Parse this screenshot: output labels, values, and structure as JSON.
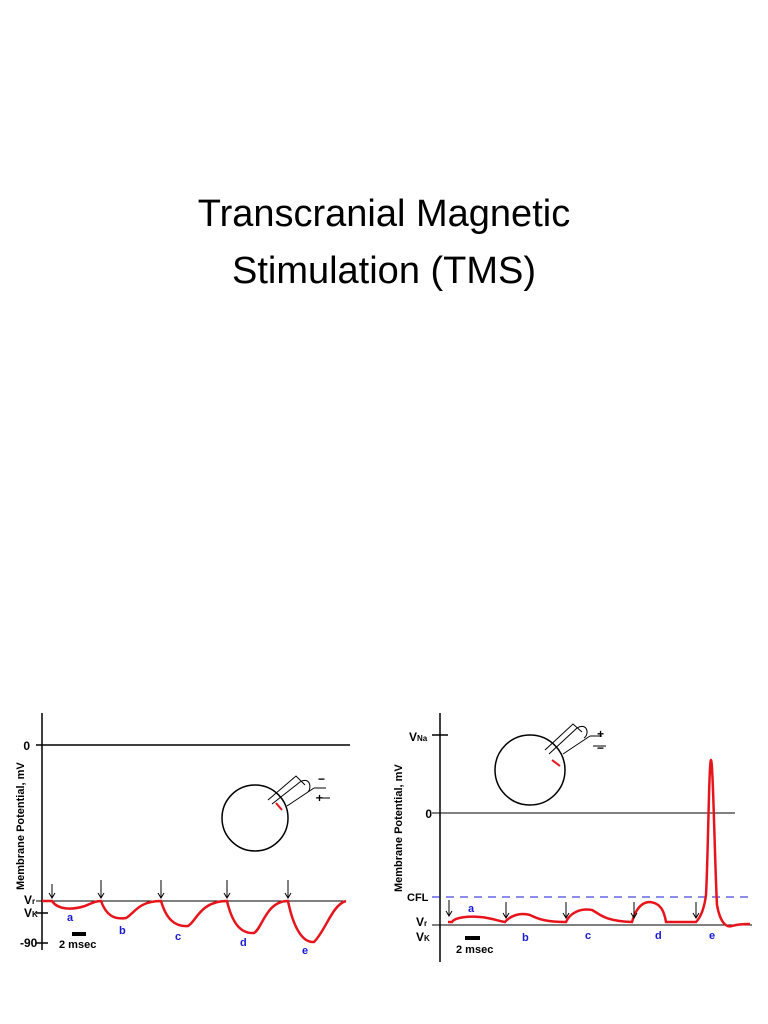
{
  "title": [
    "Transcranial Magnetic",
    "Stimulation (TMS)"
  ],
  "left_figure": {
    "axis_label": "Membrane Potential, mV",
    "zero": "0",
    "vr": {
      "main": "V",
      "sub": "r"
    },
    "vk": {
      "main": "V",
      "sub": "K"
    },
    "minus90": "-90",
    "scale": "2 msec",
    "letters": [
      "a",
      "b",
      "c",
      "d",
      "e"
    ],
    "minus_sign": "−",
    "plus_sign": "+"
  },
  "right_figure": {
    "axis_label": "Membrane Potential, mV",
    "vna": {
      "main": "V",
      "sub": "Na"
    },
    "zero": "0",
    "cfl": "CFL",
    "vr": {
      "main": "V",
      "sub": "r"
    },
    "vk": {
      "main": "V",
      "sub": "K"
    },
    "scale": "2 msec",
    "letters": [
      "a",
      "b",
      "c",
      "d",
      "e"
    ],
    "plus_sign": "+",
    "minus_sign": "−"
  }
}
